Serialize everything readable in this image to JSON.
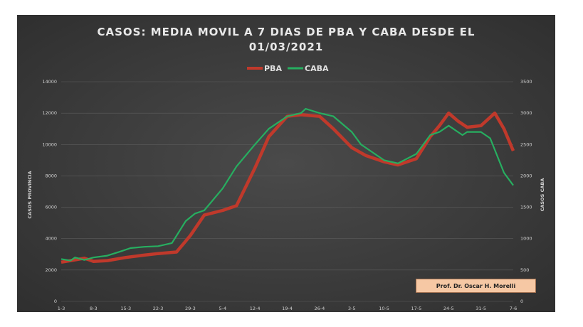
{
  "credit": "Prof. Dr. Oscar H. Morelli",
  "chart_data": {
    "type": "line",
    "title_lines": [
      "CASOS: MEDIA MOVIL A 7 DIAS DE PBA Y CABA DESDE EL",
      "01/03/2021"
    ],
    "ylabel_left": "CASOS PROVINCIA",
    "ylabel_right": "CASOS CABA",
    "y_left_range": [
      0,
      14000
    ],
    "y_right_range": [
      0,
      3500
    ],
    "y_left_ticks": [
      "0",
      "2000",
      "4000",
      "6000",
      "8000",
      "10000",
      "12000",
      "14000"
    ],
    "y_right_ticks": [
      "0",
      "500",
      "1000",
      "1500",
      "2000",
      "2500",
      "3000",
      "3500"
    ],
    "x_ticks": [
      "1-3",
      "8-3",
      "15-3",
      "22-3",
      "29-3",
      "5-4",
      "12-4",
      "19-4",
      "26-4",
      "3-5",
      "10-5",
      "17-5",
      "24-5",
      "31-5",
      "7-6"
    ],
    "grid": true,
    "legend_position": "top-center",
    "series": [
      {
        "name": "PBA",
        "axis": "left",
        "color": "#c0392b",
        "day": [
          0,
          3,
          5,
          7,
          10,
          14,
          18,
          21,
          25,
          28,
          31,
          35,
          38,
          42,
          45,
          49,
          52,
          56,
          59,
          63,
          66,
          70,
          73,
          77,
          80,
          82,
          84,
          86,
          88,
          91,
          94,
          96,
          98
        ],
        "values": [
          2500,
          2650,
          2750,
          2550,
          2600,
          2800,
          2950,
          3050,
          3150,
          4200,
          5500,
          5800,
          6100,
          8500,
          10500,
          11800,
          11900,
          11800,
          11000,
          9800,
          9300,
          8900,
          8700,
          9100,
          10500,
          11200,
          12000,
          11500,
          11100,
          11200,
          12000,
          11000,
          9600
        ]
      },
      {
        "name": "CABA",
        "axis": "right",
        "color": "#27ae60",
        "day": [
          0,
          2,
          3,
          5,
          7,
          10,
          13,
          15,
          18,
          21,
          24,
          27,
          29,
          31,
          35,
          38,
          42,
          45,
          49,
          52,
          53,
          56,
          59,
          63,
          65,
          70,
          73,
          77,
          80,
          82,
          84,
          86,
          87,
          88,
          91,
          93,
          96,
          98
        ],
        "values": [
          675,
          650,
          700,
          660,
          700,
          730,
          800,
          850,
          870,
          880,
          930,
          1280,
          1400,
          1450,
          1800,
          2150,
          2500,
          2750,
          2950,
          3000,
          3070,
          3000,
          2950,
          2700,
          2500,
          2250,
          2200,
          2350,
          2650,
          2700,
          2800,
          2700,
          2650,
          2700,
          2700,
          2600,
          2050,
          1850
        ]
      }
    ]
  }
}
